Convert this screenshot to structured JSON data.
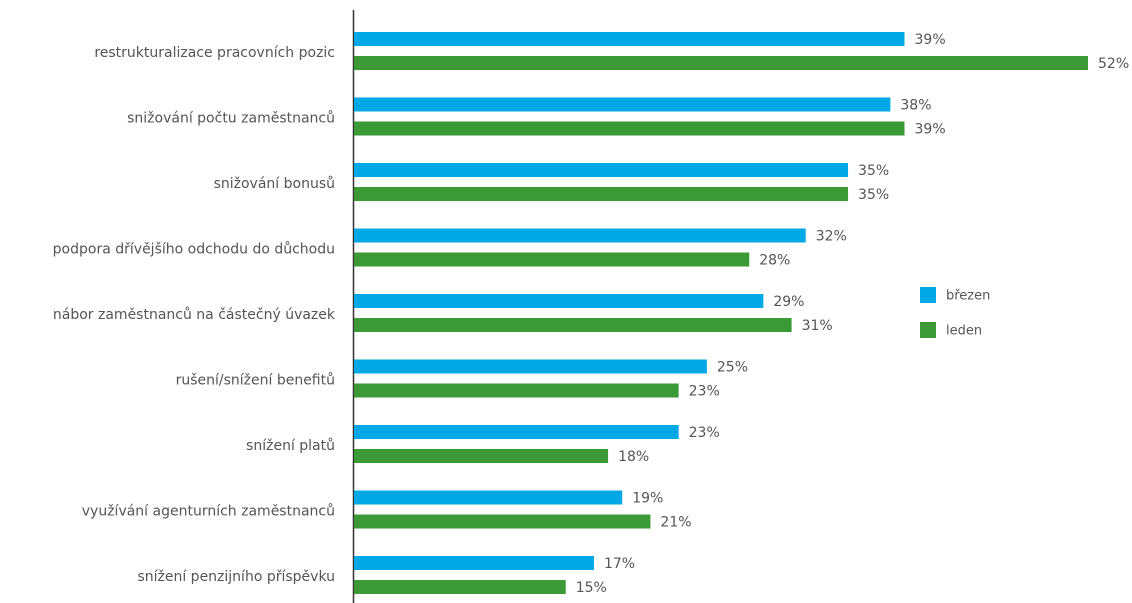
{
  "chart_data": {
    "type": "hbar",
    "categories": [
      "restrukturalizace pracovních pozic",
      "snižování počtu zaměstnanců",
      "snižování bonusů",
      "podpora dřívějšího odchodu do důchodu",
      "nábor zaměstnanců na částečný úvazek",
      "rušení/snížení benefitů",
      "snížení platů",
      "využívání agenturních zaměstnanců",
      "snížení penzijního příspěvku"
    ],
    "series": [
      {
        "name": "březen",
        "color": "#00a9e6",
        "values": [
          39,
          38,
          35,
          32,
          29,
          25,
          23,
          19,
          17
        ],
        "value_labels": [
          "39%",
          "38%",
          "35%",
          "32%",
          "29%",
          "25%",
          "23%",
          "19%",
          "17%"
        ]
      },
      {
        "name": "leden",
        "color": "#3b9a36",
        "values": [
          52,
          39,
          35,
          28,
          31,
          23,
          18,
          21,
          15
        ],
        "value_labels": [
          "52%",
          "39%",
          "35%",
          "28%",
          "31%",
          "23%",
          "18%",
          "21%",
          "15%"
        ]
      }
    ],
    "legend": "right"
  }
}
